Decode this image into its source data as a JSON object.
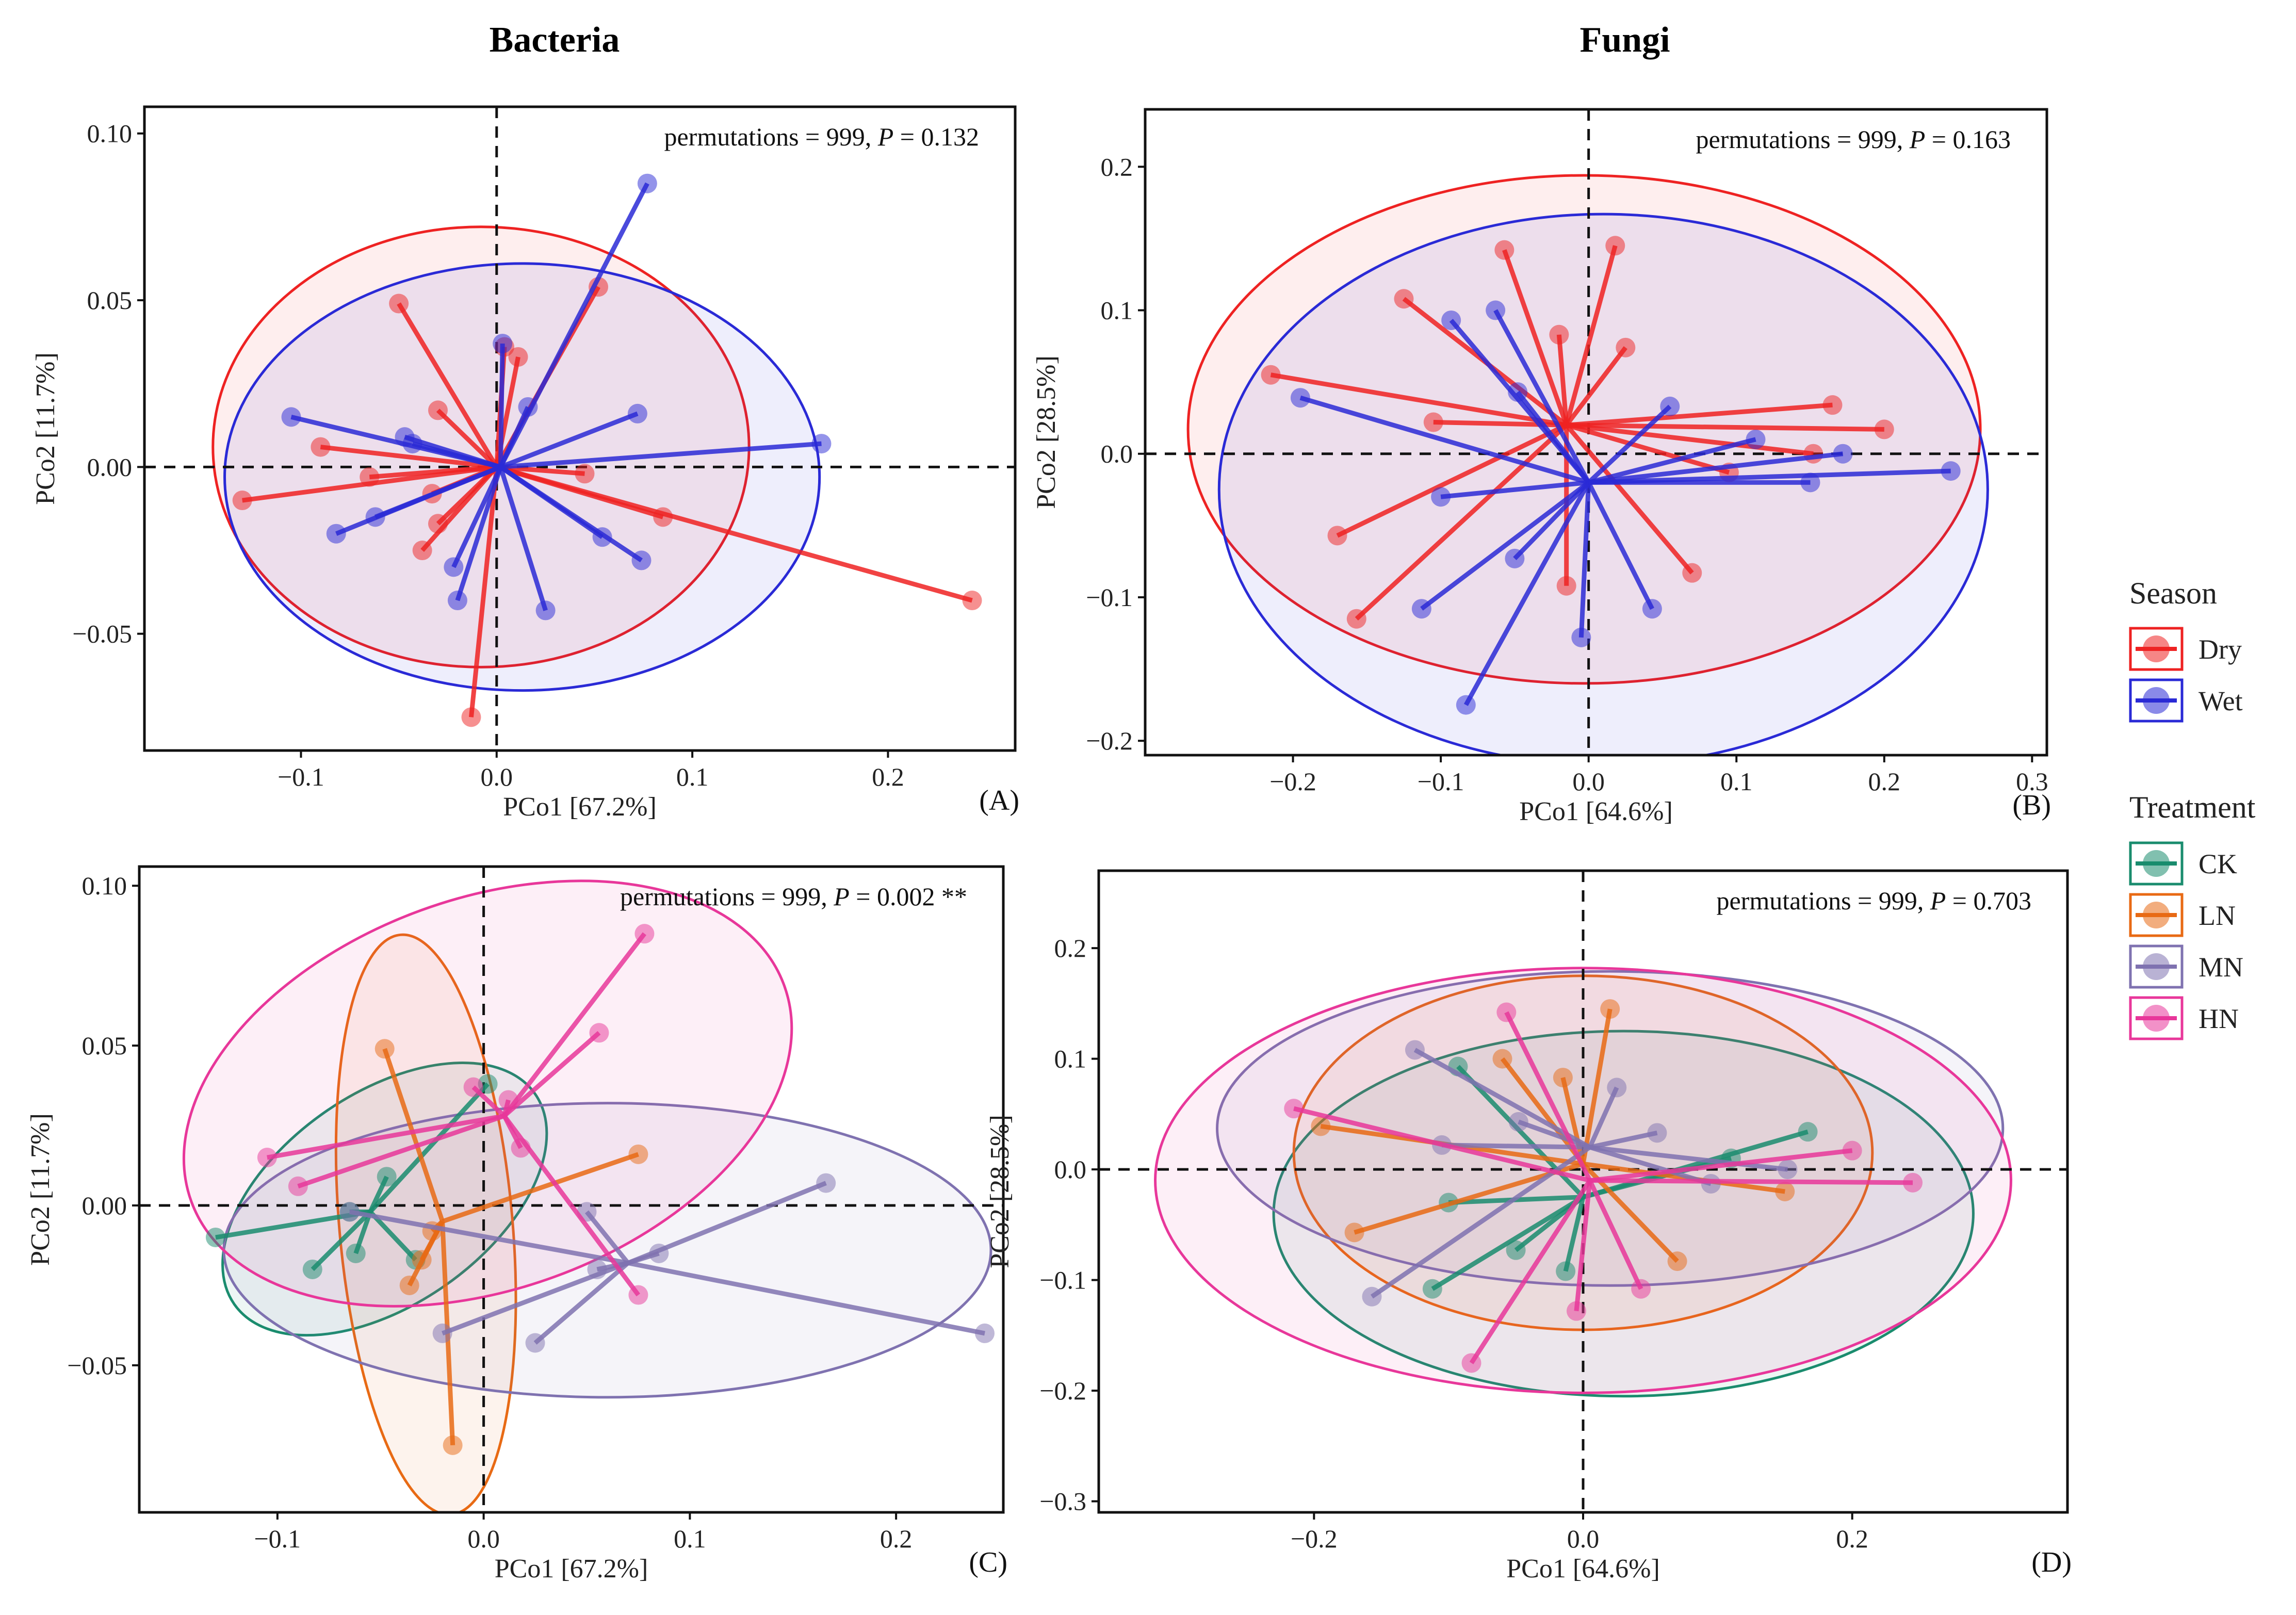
{
  "column_titles": {
    "left": "Bacteria",
    "right": "Fungi"
  },
  "colors": {
    "Dry": "#ee2222",
    "Wet": "#2a2ad6",
    "CK": "#1a8c6e",
    "LN": "#e86a14",
    "MN": "#7f72b0",
    "HN": "#e8379a"
  },
  "legend": {
    "season": {
      "title": "Season",
      "items": [
        {
          "key": "Dry",
          "label": "Dry"
        },
        {
          "key": "Wet",
          "label": "Wet"
        }
      ]
    },
    "treatment": {
      "title": "Treatment",
      "items": [
        {
          "key": "CK",
          "label": "CK"
        },
        {
          "key": "LN",
          "label": "LN"
        },
        {
          "key": "MN",
          "label": "MN"
        },
        {
          "key": "HN",
          "label": "HN"
        }
      ]
    },
    "position": "right"
  },
  "chart_data": [
    {
      "id": "A",
      "type": "scatter",
      "subtype": "PCoA",
      "column": "Bacteria",
      "panel_label": "(A)",
      "xlabel": "PCo1 [67.2%]",
      "ylabel": "PCo2 [11.7%]",
      "annotation": {
        "prefix": "permutations = 999, ",
        "pvar": "P",
        "value": " = 0.132"
      },
      "xlim": [
        -0.18,
        0.265
      ],
      "ylim": [
        -0.085,
        0.108
      ],
      "xticks": [
        -0.1,
        0.0,
        0.1,
        0.2
      ],
      "xtick_labels": [
        "−0.1",
        "0.0",
        "0.1",
        "0.2"
      ],
      "yticks": [
        -0.05,
        0.0,
        0.05,
        0.1
      ],
      "ytick_labels": [
        "−0.05",
        "0.00",
        "0.05",
        "0.10"
      ],
      "groups": [
        {
          "name": "Dry",
          "centroid": [
            0.0,
            0.0
          ],
          "ellipse": {
            "cx": -0.008,
            "cy": 0.006,
            "rx": 0.137,
            "ry": 0.066,
            "angle": 0
          },
          "points": [
            [
              -0.05,
              0.049
            ],
            [
              -0.09,
              0.006
            ],
            [
              -0.13,
              -0.01
            ],
            [
              -0.03,
              0.017
            ],
            [
              -0.033,
              -0.008
            ],
            [
              -0.03,
              -0.017
            ],
            [
              -0.038,
              -0.025
            ],
            [
              -0.013,
              -0.075
            ],
            [
              0.004,
              0.036
            ],
            [
              0.011,
              0.033
            ],
            [
              0.045,
              -0.002
            ],
            [
              0.052,
              0.054
            ],
            [
              0.085,
              -0.015
            ],
            [
              0.243,
              -0.04
            ],
            [
              -0.065,
              -0.003
            ]
          ]
        },
        {
          "name": "Wet",
          "centroid": [
            0.002,
            0.0
          ],
          "ellipse": {
            "cx": 0.013,
            "cy": -0.003,
            "rx": 0.152,
            "ry": 0.064,
            "angle": 0
          },
          "points": [
            [
              -0.105,
              0.015
            ],
            [
              -0.082,
              -0.02
            ],
            [
              -0.062,
              -0.015
            ],
            [
              -0.047,
              0.009
            ],
            [
              -0.022,
              -0.03
            ],
            [
              -0.02,
              -0.04
            ],
            [
              0.003,
              0.037
            ],
            [
              0.016,
              0.018
            ],
            [
              0.025,
              -0.043
            ],
            [
              0.054,
              -0.021
            ],
            [
              0.072,
              0.016
            ],
            [
              0.074,
              -0.028
            ],
            [
              0.077,
              0.085
            ],
            [
              0.166,
              0.007
            ],
            [
              -0.043,
              0.007
            ]
          ]
        }
      ]
    },
    {
      "id": "B",
      "type": "scatter",
      "subtype": "PCoA",
      "column": "Fungi",
      "panel_label": "(B)",
      "xlabel": "PCo1 [64.6%]",
      "ylabel": "PCo2 [28.5%]",
      "annotation": {
        "prefix": "permutations = 999, ",
        "pvar": "P",
        "value": " = 0.163"
      },
      "xlim": [
        -0.3,
        0.31
      ],
      "ylim": [
        -0.21,
        0.24
      ],
      "xticks": [
        -0.2,
        -0.1,
        0.0,
        0.1,
        0.2,
        0.3
      ],
      "xtick_labels": [
        "−0.2",
        "−0.1",
        "0.0",
        "0.1",
        "0.2",
        "0.3"
      ],
      "yticks": [
        -0.2,
        -0.1,
        0.0,
        0.1,
        0.2
      ],
      "ytick_labels": [
        "−0.2",
        "−0.1",
        "0.0",
        "0.1",
        "0.2"
      ],
      "groups": [
        {
          "name": "Dry",
          "centroid": [
            -0.015,
            0.02
          ],
          "ellipse": {
            "cx": -0.003,
            "cy": 0.017,
            "rx": 0.268,
            "ry": 0.177,
            "angle": 0
          },
          "points": [
            [
              -0.215,
              0.055
            ],
            [
              -0.125,
              0.108
            ],
            [
              -0.105,
              0.022
            ],
            [
              -0.17,
              -0.057
            ],
            [
              -0.157,
              -0.115
            ],
            [
              -0.057,
              0.142
            ],
            [
              -0.02,
              0.083
            ],
            [
              -0.015,
              -0.092
            ],
            [
              0.018,
              0.145
            ],
            [
              0.025,
              0.074
            ],
            [
              0.07,
              -0.083
            ],
            [
              0.095,
              -0.013
            ],
            [
              0.152,
              0.0
            ],
            [
              0.165,
              0.034
            ],
            [
              0.2,
              0.017
            ]
          ]
        },
        {
          "name": "Wet",
          "centroid": [
            0.0,
            -0.02
          ],
          "ellipse": {
            "cx": 0.01,
            "cy": -0.025,
            "rx": 0.26,
            "ry": 0.192,
            "angle": 0
          },
          "points": [
            [
              -0.195,
              0.039
            ],
            [
              -0.1,
              -0.03
            ],
            [
              -0.113,
              -0.108
            ],
            [
              -0.093,
              0.093
            ],
            [
              -0.063,
              0.1
            ],
            [
              -0.048,
              0.043
            ],
            [
              -0.05,
              -0.073
            ],
            [
              -0.083,
              -0.175
            ],
            [
              -0.005,
              -0.128
            ],
            [
              0.043,
              -0.108
            ],
            [
              0.055,
              0.033
            ],
            [
              0.113,
              0.01
            ],
            [
              0.15,
              -0.02
            ],
            [
              0.172,
              0.0
            ],
            [
              0.245,
              -0.012
            ]
          ]
        }
      ]
    },
    {
      "id": "C",
      "type": "scatter",
      "subtype": "PCoA",
      "column": "Bacteria",
      "panel_label": "(C)",
      "xlabel": "PCo1 [67.2%]",
      "ylabel": "PCo2 [11.7%]",
      "annotation": {
        "prefix": "permutations = 999, ",
        "pvar": "P",
        "value": " = 0.002 **"
      },
      "xlim": [
        -0.167,
        0.252
      ],
      "ylim": [
        -0.096,
        0.106
      ],
      "xticks": [
        -0.1,
        0.0,
        0.1,
        0.2
      ],
      "xtick_labels": [
        "−0.1",
        "0.0",
        "0.1",
        "0.2"
      ],
      "yticks": [
        -0.05,
        0.0,
        0.05,
        0.1
      ],
      "ytick_labels": [
        "−0.05",
        "0.00",
        "0.05",
        "0.10"
      ],
      "groups": [
        {
          "name": "CK",
          "centroid": [
            -0.055,
            -0.002
          ],
          "ellipse": {
            "cx": -0.048,
            "cy": 0.002,
            "rx": 0.089,
            "ry": 0.033,
            "angle": 35
          },
          "points": [
            [
              -0.13,
              -0.01
            ],
            [
              -0.083,
              -0.02
            ],
            [
              -0.062,
              -0.015
            ],
            [
              -0.047,
              0.009
            ],
            [
              -0.033,
              -0.017
            ],
            [
              0.002,
              0.038
            ],
            [
              -0.065,
              -0.002
            ]
          ]
        },
        {
          "name": "LN",
          "centroid": [
            -0.02,
            -0.005
          ],
          "ellipse": {
            "cx": -0.028,
            "cy": -0.006,
            "rx": 0.042,
            "ry": 0.091,
            "angle": 5
          },
          "points": [
            [
              -0.048,
              0.049
            ],
            [
              -0.036,
              -0.025
            ],
            [
              -0.03,
              -0.017
            ],
            [
              -0.015,
              -0.075
            ],
            [
              0.075,
              0.016
            ],
            [
              -0.025,
              -0.008
            ]
          ]
        },
        {
          "name": "MN",
          "centroid": [
            0.07,
            -0.018
          ],
          "ellipse": {
            "cx": 0.06,
            "cy": -0.014,
            "rx": 0.186,
            "ry": 0.046,
            "angle": 0
          },
          "points": [
            [
              -0.065,
              -0.002
            ],
            [
              -0.02,
              -0.04
            ],
            [
              0.025,
              -0.043
            ],
            [
              0.05,
              -0.002
            ],
            [
              0.055,
              -0.02
            ],
            [
              0.085,
              -0.015
            ],
            [
              0.166,
              0.007
            ],
            [
              0.243,
              -0.04
            ]
          ]
        },
        {
          "name": "HN",
          "centroid": [
            0.01,
            0.028
          ],
          "ellipse": {
            "cx": 0.002,
            "cy": 0.035,
            "rx": 0.153,
            "ry": 0.061,
            "angle": 20
          },
          "points": [
            [
              -0.105,
              0.015
            ],
            [
              -0.09,
              0.006
            ],
            [
              -0.005,
              0.037
            ],
            [
              0.012,
              0.033
            ],
            [
              0.018,
              0.018
            ],
            [
              0.056,
              0.054
            ],
            [
              0.075,
              -0.028
            ],
            [
              0.078,
              0.085
            ]
          ]
        }
      ]
    },
    {
      "id": "D",
      "type": "scatter",
      "subtype": "PCoA",
      "column": "Fungi",
      "panel_label": "(D)",
      "xlabel": "PCo1 [64.6%]",
      "ylabel": "PCo2 [28.5%]",
      "annotation": {
        "prefix": "permutations = 999, ",
        "pvar": "P",
        "value": " = 0.703"
      },
      "xlim": [
        -0.36,
        0.36
      ],
      "ylim": [
        -0.31,
        0.27
      ],
      "xticks": [
        -0.2,
        0.0,
        0.2
      ],
      "xtick_labels": [
        "−0.2",
        "0.0",
        "0.2"
      ],
      "yticks": [
        -0.3,
        -0.2,
        -0.1,
        0.0,
        0.1,
        0.2
      ],
      "ytick_labels": [
        "−0.3",
        "−0.2",
        "−0.1",
        "0.0",
        "0.1",
        "0.2"
      ],
      "groups": [
        {
          "name": "CK",
          "centroid": [
            0.0,
            -0.025
          ],
          "ellipse": {
            "cx": 0.03,
            "cy": -0.04,
            "rx": 0.26,
            "ry": 0.165,
            "angle": 0
          },
          "points": [
            [
              -0.1,
              -0.03
            ],
            [
              -0.112,
              -0.108
            ],
            [
              -0.093,
              0.093
            ],
            [
              -0.05,
              -0.073
            ],
            [
              -0.013,
              -0.092
            ],
            [
              0.11,
              0.01
            ],
            [
              0.167,
              0.034
            ]
          ]
        },
        {
          "name": "LN",
          "centroid": [
            0.0,
            0.005
          ],
          "ellipse": {
            "cx": 0.0,
            "cy": 0.015,
            "rx": 0.215,
            "ry": 0.16,
            "angle": 0
          },
          "points": [
            [
              -0.195,
              0.039
            ],
            [
              -0.17,
              -0.057
            ],
            [
              -0.06,
              0.1
            ],
            [
              -0.015,
              0.083
            ],
            [
              0.02,
              0.145
            ],
            [
              0.07,
              -0.083
            ],
            [
              0.15,
              -0.02
            ]
          ]
        },
        {
          "name": "MN",
          "centroid": [
            0.005,
            0.02
          ],
          "ellipse": {
            "cx": 0.02,
            "cy": 0.037,
            "rx": 0.292,
            "ry": 0.142,
            "angle": 0
          },
          "points": [
            [
              -0.157,
              -0.115
            ],
            [
              -0.125,
              0.108
            ],
            [
              -0.105,
              0.022
            ],
            [
              -0.048,
              0.043
            ],
            [
              0.025,
              0.074
            ],
            [
              0.055,
              0.033
            ],
            [
              0.095,
              -0.013
            ],
            [
              0.152,
              0.0
            ]
          ]
        },
        {
          "name": "HN",
          "centroid": [
            0.005,
            -0.01
          ],
          "ellipse": {
            "cx": 0.0,
            "cy": -0.01,
            "rx": 0.318,
            "ry": 0.192,
            "angle": 0
          },
          "points": [
            [
              -0.215,
              0.055
            ],
            [
              -0.057,
              0.142
            ],
            [
              -0.083,
              -0.175
            ],
            [
              -0.005,
              -0.128
            ],
            [
              0.043,
              -0.108
            ],
            [
              0.2,
              0.017
            ],
            [
              0.245,
              -0.012
            ]
          ]
        }
      ]
    }
  ]
}
